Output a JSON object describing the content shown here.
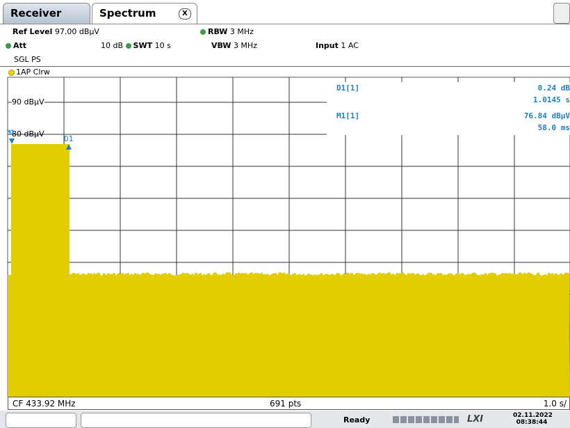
{
  "tabs": [
    "Receiver",
    "Spectrum",
    "X"
  ],
  "settings": {
    "ref_level_label": "Ref Level",
    "ref_level": "97.00 dBµV",
    "rbw_label": "RBW",
    "rbw": "3 MHz",
    "att_label": "Att",
    "att": "10 dB",
    "swt_label": "SWT",
    "swt": "10 s",
    "vbw_label": "VBW",
    "vbw": "3 MHz",
    "input_label": "Input",
    "input": "1 AC",
    "mode": "SGL PS"
  },
  "trace_label": "1AP Clrw",
  "y_labels": [
    "90 dBµV",
    "80 dBµV"
  ],
  "markers": {
    "m1": "M1",
    "d1": "D1"
  },
  "marker_table": [
    {
      "name": "D1[1]",
      "lines": [
        "0.24 dB",
        "1.0145 s"
      ]
    },
    {
      "name": "M1[1]",
      "lines": [
        "76.84 dBµV",
        "58.0 ms"
      ]
    }
  ],
  "footer": {
    "center_freq": "CF 433.92 MHz",
    "points": "691 pts",
    "scale": "1.0 s/"
  },
  "status": {
    "state": "Ready",
    "logo": "LXI",
    "date": "02.11.2022",
    "time": "08:38:44"
  }
}
